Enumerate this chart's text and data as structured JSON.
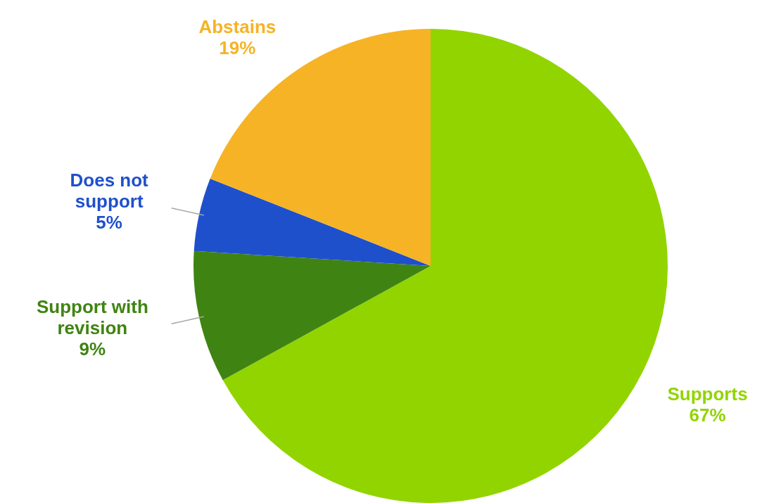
{
  "chart_data": {
    "type": "pie",
    "categories": [
      "Supports",
      "Support with revision",
      "Does not support",
      "Abstains"
    ],
    "values": [
      67,
      9,
      5,
      19
    ],
    "value_labels": [
      "67%",
      "9%",
      "5%",
      "19%"
    ],
    "colors": [
      "#92d400",
      "#3f8412",
      "#1f50cc",
      "#f6b326"
    ],
    "legend": false
  }
}
